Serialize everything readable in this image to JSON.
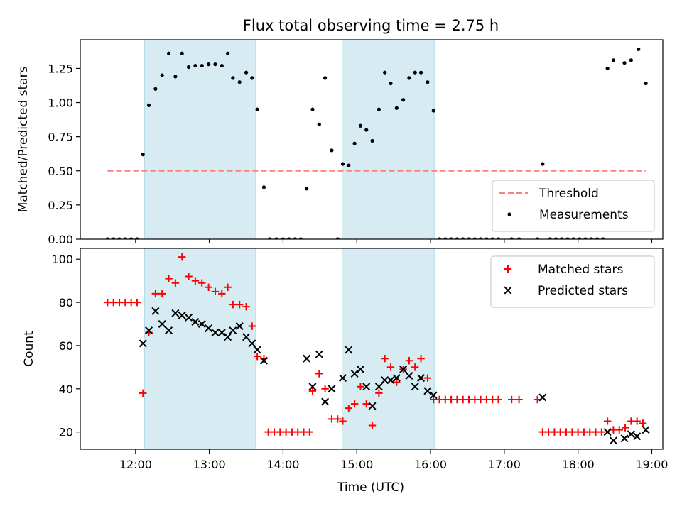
{
  "chart_data": {
    "title": "Flux total observing time = 2.75 h",
    "xlabel": "Time (UTC)",
    "x_unit": "hours UTC",
    "xlim": [
      11.25,
      19.15
    ],
    "xticks": [
      12,
      13,
      14,
      15,
      16,
      17,
      18,
      19
    ],
    "xtick_labels": [
      "12:00",
      "13:00",
      "14:00",
      "15:00",
      "16:00",
      "17:00",
      "18:00",
      "19:00"
    ],
    "highlight_spans": [
      [
        12.12,
        13.63
      ],
      [
        14.8,
        16.05
      ]
    ],
    "panels": [
      {
        "type": "scatter",
        "ylabel": "Matched/Predicted stars",
        "ylim": [
          0,
          1.46
        ],
        "yticks": [
          0,
          0.25,
          0.5,
          0.75,
          1.0,
          1.25
        ],
        "ytick_labels": [
          "0.00",
          "0.25",
          "0.50",
          "0.75",
          "1.00",
          "1.25"
        ],
        "threshold": {
          "name": "Threshold",
          "value": 0.5,
          "x_range": [
            11.62,
            18.92
          ],
          "color": "#ff7f7f"
        },
        "legend": [
          "Threshold",
          "Measurements"
        ],
        "legend_position": "lower-right",
        "series": [
          {
            "name": "Measurements",
            "marker": "dot",
            "color": "#000000",
            "points": [
              [
                11.62,
                0
              ],
              [
                11.7,
                0
              ],
              [
                11.78,
                0
              ],
              [
                11.86,
                0
              ],
              [
                11.94,
                0
              ],
              [
                12.02,
                0
              ],
              [
                12.1,
                0.62
              ],
              [
                12.18,
                0.98
              ],
              [
                12.27,
                1.1
              ],
              [
                12.36,
                1.2
              ],
              [
                12.45,
                1.36
              ],
              [
                12.54,
                1.19
              ],
              [
                12.63,
                1.36
              ],
              [
                12.72,
                1.26
              ],
              [
                12.81,
                1.27
              ],
              [
                12.9,
                1.27
              ],
              [
                12.99,
                1.28
              ],
              [
                13.08,
                1.28
              ],
              [
                13.17,
                1.27
              ],
              [
                13.25,
                1.36
              ],
              [
                13.32,
                1.18
              ],
              [
                13.41,
                1.15
              ],
              [
                13.5,
                1.22
              ],
              [
                13.58,
                1.18
              ],
              [
                13.65,
                0.95
              ],
              [
                13.74,
                0.38
              ],
              [
                13.82,
                0
              ],
              [
                13.91,
                0
              ],
              [
                14.0,
                0
              ],
              [
                14.08,
                0
              ],
              [
                14.16,
                0
              ],
              [
                14.24,
                0
              ],
              [
                14.32,
                0.37
              ],
              [
                14.4,
                0.95
              ],
              [
                14.49,
                0.84
              ],
              [
                14.57,
                1.18
              ],
              [
                14.66,
                0.65
              ],
              [
                14.74,
                0
              ],
              [
                14.81,
                0.55
              ],
              [
                14.89,
                0.54
              ],
              [
                14.97,
                0.7
              ],
              [
                15.05,
                0.83
              ],
              [
                15.13,
                0.8
              ],
              [
                15.21,
                0.72
              ],
              [
                15.3,
                0.95
              ],
              [
                15.38,
                1.22
              ],
              [
                15.46,
                1.14
              ],
              [
                15.54,
                0.96
              ],
              [
                15.63,
                1.02
              ],
              [
                15.71,
                1.18
              ],
              [
                15.79,
                1.22
              ],
              [
                15.87,
                1.22
              ],
              [
                15.96,
                1.15
              ],
              [
                16.04,
                0.94
              ],
              [
                16.12,
                0
              ],
              [
                16.2,
                0
              ],
              [
                16.28,
                0
              ],
              [
                16.36,
                0
              ],
              [
                16.44,
                0
              ],
              [
                16.52,
                0
              ],
              [
                16.6,
                0
              ],
              [
                16.68,
                0
              ],
              [
                16.76,
                0
              ],
              [
                16.84,
                0
              ],
              [
                16.92,
                0
              ],
              [
                17.1,
                0
              ],
              [
                17.2,
                0
              ],
              [
                17.45,
                0
              ],
              [
                17.52,
                0.55
              ],
              [
                17.62,
                0
              ],
              [
                17.7,
                0
              ],
              [
                17.78,
                0
              ],
              [
                17.86,
                0
              ],
              [
                17.94,
                0
              ],
              [
                18.02,
                0
              ],
              [
                18.1,
                0
              ],
              [
                18.18,
                0
              ],
              [
                18.26,
                0
              ],
              [
                18.34,
                0
              ],
              [
                18.4,
                1.25
              ],
              [
                18.48,
                1.31
              ],
              [
                18.63,
                1.29
              ],
              [
                18.72,
                1.31
              ],
              [
                18.82,
                1.39
              ],
              [
                18.92,
                1.14
              ]
            ]
          }
        ]
      },
      {
        "type": "scatter",
        "ylabel": "Count",
        "ylim": [
          12,
          105
        ],
        "yticks": [
          20,
          40,
          60,
          80,
          100
        ],
        "ytick_labels": [
          "20",
          "40",
          "60",
          "80",
          "100"
        ],
        "legend": [
          "Matched stars",
          "Predicted stars"
        ],
        "legend_position": "upper-right",
        "series": [
          {
            "name": "Matched stars",
            "marker": "plus",
            "color": "#ff0000",
            "points": [
              [
                11.62,
                80
              ],
              [
                11.7,
                80
              ],
              [
                11.78,
                80
              ],
              [
                11.86,
                80
              ],
              [
                11.94,
                80
              ],
              [
                12.02,
                80
              ],
              [
                12.1,
                38
              ],
              [
                12.18,
                66
              ],
              [
                12.27,
                84
              ],
              [
                12.36,
                84
              ],
              [
                12.45,
                91
              ],
              [
                12.54,
                89
              ],
              [
                12.63,
                101
              ],
              [
                12.72,
                92
              ],
              [
                12.81,
                90
              ],
              [
                12.9,
                89
              ],
              [
                12.99,
                87
              ],
              [
                13.08,
                85
              ],
              [
                13.17,
                84
              ],
              [
                13.25,
                87
              ],
              [
                13.32,
                79
              ],
              [
                13.41,
                79
              ],
              [
                13.5,
                78
              ],
              [
                13.58,
                69
              ],
              [
                13.65,
                55
              ],
              [
                13.74,
                54
              ],
              [
                13.8,
                20
              ],
              [
                13.88,
                20
              ],
              [
                13.96,
                20
              ],
              [
                14.04,
                20
              ],
              [
                14.12,
                20
              ],
              [
                14.2,
                20
              ],
              [
                14.28,
                20
              ],
              [
                14.36,
                20
              ],
              [
                14.4,
                39
              ],
              [
                14.49,
                47
              ],
              [
                14.57,
                40
              ],
              [
                14.66,
                26
              ],
              [
                14.74,
                26
              ],
              [
                14.81,
                25
              ],
              [
                14.89,
                31
              ],
              [
                14.97,
                33
              ],
              [
                15.05,
                41
              ],
              [
                15.13,
                33
              ],
              [
                15.21,
                23
              ],
              [
                15.3,
                38
              ],
              [
                15.38,
                54
              ],
              [
                15.46,
                50
              ],
              [
                15.54,
                43
              ],
              [
                15.63,
                49
              ],
              [
                15.71,
                53
              ],
              [
                15.79,
                50
              ],
              [
                15.87,
                54
              ],
              [
                15.96,
                45
              ],
              [
                16.04,
                35
              ],
              [
                16.12,
                35
              ],
              [
                16.2,
                35
              ],
              [
                16.28,
                35
              ],
              [
                16.36,
                35
              ],
              [
                16.44,
                35
              ],
              [
                16.52,
                35
              ],
              [
                16.6,
                35
              ],
              [
                16.68,
                35
              ],
              [
                16.76,
                35
              ],
              [
                16.84,
                35
              ],
              [
                16.92,
                35
              ],
              [
                17.1,
                35
              ],
              [
                17.2,
                35
              ],
              [
                17.45,
                35
              ],
              [
                17.52,
                20
              ],
              [
                17.6,
                20
              ],
              [
                17.68,
                20
              ],
              [
                17.76,
                20
              ],
              [
                17.84,
                20
              ],
              [
                17.92,
                20
              ],
              [
                18.0,
                20
              ],
              [
                18.08,
                20
              ],
              [
                18.16,
                20
              ],
              [
                18.24,
                20
              ],
              [
                18.32,
                20
              ],
              [
                18.4,
                25
              ],
              [
                18.48,
                21
              ],
              [
                18.56,
                21
              ],
              [
                18.64,
                22
              ],
              [
                18.72,
                25
              ],
              [
                18.8,
                25
              ],
              [
                18.88,
                24
              ]
            ]
          },
          {
            "name": "Predicted stars",
            "marker": "x",
            "color": "#000000",
            "points": [
              [
                12.1,
                61
              ],
              [
                12.18,
                67
              ],
              [
                12.27,
                76
              ],
              [
                12.36,
                70
              ],
              [
                12.45,
                67
              ],
              [
                12.54,
                75
              ],
              [
                12.63,
                74
              ],
              [
                12.72,
                73
              ],
              [
                12.81,
                71
              ],
              [
                12.9,
                70
              ],
              [
                12.99,
                68
              ],
              [
                13.08,
                66
              ],
              [
                13.17,
                66
              ],
              [
                13.25,
                64
              ],
              [
                13.32,
                67
              ],
              [
                13.41,
                69
              ],
              [
                13.5,
                64
              ],
              [
                13.58,
                61
              ],
              [
                13.65,
                58
              ],
              [
                13.74,
                53
              ],
              [
                14.32,
                54
              ],
              [
                14.4,
                41
              ],
              [
                14.49,
                56
              ],
              [
                14.57,
                34
              ],
              [
                14.66,
                40
              ],
              [
                14.81,
                45
              ],
              [
                14.89,
                58
              ],
              [
                14.97,
                47
              ],
              [
                15.05,
                49
              ],
              [
                15.13,
                41
              ],
              [
                15.21,
                32
              ],
              [
                15.3,
                41
              ],
              [
                15.38,
                44
              ],
              [
                15.46,
                44
              ],
              [
                15.54,
                45
              ],
              [
                15.63,
                49
              ],
              [
                15.71,
                46
              ],
              [
                15.79,
                41
              ],
              [
                15.87,
                45
              ],
              [
                15.96,
                39
              ],
              [
                16.04,
                37
              ],
              [
                17.52,
                36
              ],
              [
                18.4,
                20
              ],
              [
                18.48,
                16
              ],
              [
                18.63,
                17
              ],
              [
                18.72,
                19
              ],
              [
                18.8,
                18
              ],
              [
                18.92,
                21
              ]
            ]
          }
        ]
      }
    ]
  }
}
